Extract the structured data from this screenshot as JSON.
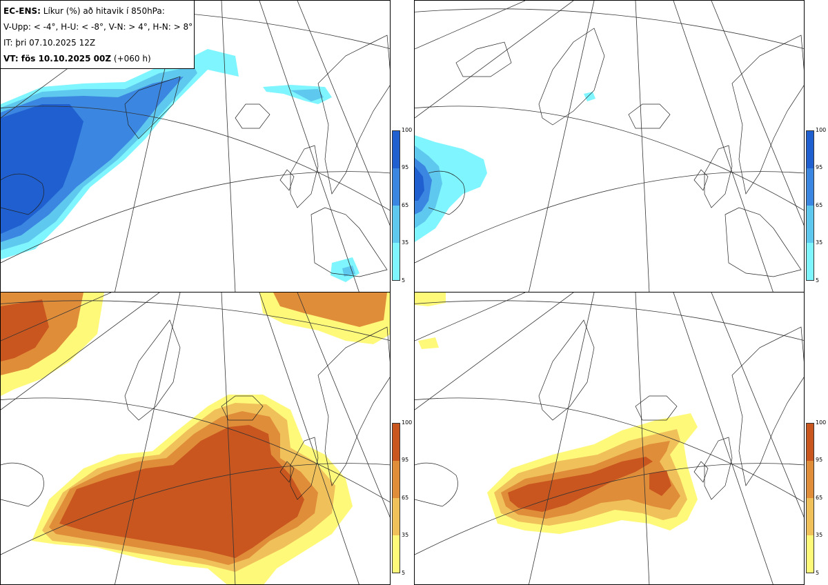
{
  "info": {
    "model_label": "EC-ENS:",
    "title_rest": "Líkur (%) að hitavik í 850hPa:",
    "categories_line": "V-Upp: < -4°, H-U: < -8°, V-N: > 4°, H-N: > 8°",
    "init_time": "IT: þri 07.10.2025 12Z",
    "valid_label": "VT: fös 10.10.2025 00Z",
    "lead": "(+060 h)"
  },
  "panels": [
    {
      "id": "V-Upp",
      "description_text": "",
      "palette": "cold",
      "threshold": "< -4°"
    },
    {
      "id": "H-U",
      "description_text": "",
      "palette": "cold",
      "threshold": "< -8°"
    },
    {
      "id": "V-N",
      "description_text": "",
      "palette": "warm",
      "threshold": "> 4°"
    },
    {
      "id": "H-N",
      "description_text": "",
      "palette": "warm",
      "threshold": "> 8°"
    }
  ],
  "legend": {
    "ticks": [
      "100",
      "95",
      "65",
      "35",
      "5"
    ],
    "cold_colors": [
      "#1f5fcf",
      "#3a86e0",
      "#5fc8ee",
      "#7ff5ff"
    ],
    "warm_colors": [
      "#c9561f",
      "#e08d3a",
      "#f0c05a",
      "#fff97a"
    ]
  },
  "colors": {
    "coast": "#222222",
    "grid": "#333333",
    "cold_dark": "#1f5fcf",
    "cold_mid": "#3a86e0",
    "cold_light": "#5fc8ee",
    "cold_pale": "#7ff5ff",
    "warm_dark": "#c9561f",
    "warm_mid": "#e08d3a",
    "warm_light": "#f0c05a",
    "warm_pale": "#fff97a"
  }
}
